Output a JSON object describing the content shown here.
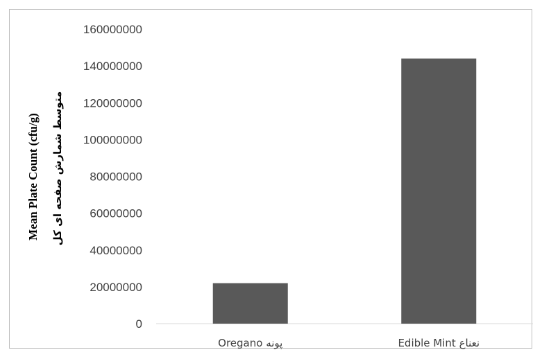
{
  "chart_data": {
    "type": "bar",
    "categories": [
      "Oregano پونه",
      "Edible Mint نعناع"
    ],
    "series": [
      {
        "values": [
          22000000,
          144000000
        ],
        "color": "#595959"
      }
    ],
    "ylabel": "Mean Plate Count (cfu/g)",
    "ylabel_secondary": "متوسط شمارش صفحه ای کل",
    "ylim": [
      0,
      160000000
    ],
    "yticks": [
      0,
      20000000,
      40000000,
      60000000,
      80000000,
      100000000,
      120000000,
      140000000,
      160000000
    ],
    "grid": false,
    "legend": "none",
    "axis_color": "#d9d9d9"
  }
}
